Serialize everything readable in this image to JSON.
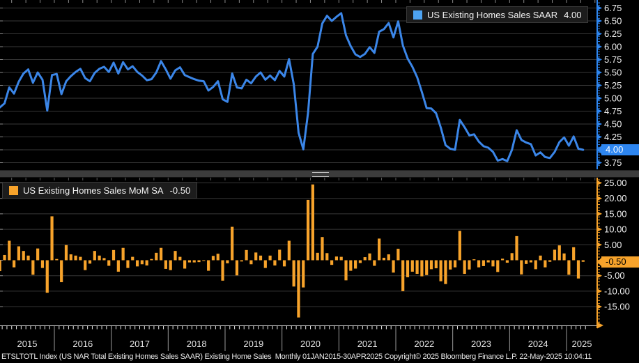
{
  "top_panel": {
    "legend": {
      "label": "US Existing Homes Sales SAAR",
      "value": "4.00",
      "swatch_color": "#4da3f2"
    },
    "last_value_marker": "4.00",
    "axis": {
      "color": "#2e86f0",
      "labels": [
        "6.75",
        "6.50",
        "6.25",
        "6.00",
        "5.75",
        "5.50",
        "5.25",
        "5.00",
        "4.75",
        "4.50",
        "4.25",
        "4.00",
        "3.75"
      ]
    }
  },
  "bottom_panel": {
    "legend": {
      "label": "US Existing Homes Sales MoM SA",
      "value": "-0.50",
      "swatch_color": "#f7a32b"
    },
    "last_value_marker": "-0.50",
    "axis": {
      "color": "#f7a32b",
      "labels": [
        "25.00",
        "20.00",
        "15.00",
        "10.00",
        "5.00",
        "-5.00",
        "-10.00",
        "-15.00"
      ]
    }
  },
  "x_axis": {
    "years": [
      "2015",
      "2016",
      "2017",
      "2018",
      "2019",
      "2020",
      "2021",
      "2022",
      "2023",
      "2024",
      "2025"
    ]
  },
  "status_bar": {
    "text": "ETSLTOTL Index (US NAR Total Existing Homes Sales SAAR) Existing Home Sales  Monthly 01JAN2015-30APR2025 Copyright© 2025 Bloomberg Finance L.P. 22-May-2025 10:04:11"
  },
  "colors": {
    "line_blue": "#3b86e8",
    "axis_blue": "#2e86f0",
    "bar_orange": "#f7a32b",
    "gridline": "#373737",
    "tick_gray": "#e8e8e8",
    "separator_gray": "#9a9a9a",
    "label_white": "#f2f2f2"
  },
  "chart_data": [
    {
      "type": "line",
      "title": "US Existing Homes Sales SAAR",
      "x_start": "Jan 2015",
      "x_end": "Apr 2025",
      "frequency": "monthly",
      "last_value": 4.0,
      "ylim": [
        3.66,
        6.9
      ],
      "ytick_step": 0.25,
      "grid": true,
      "legend_position": "top-right",
      "values": [
        4.82,
        4.9,
        5.21,
        5.09,
        5.32,
        5.48,
        5.56,
        5.3,
        5.5,
        5.36,
        4.76,
        5.45,
        5.47,
        5.08,
        5.33,
        5.43,
        5.51,
        5.57,
        5.39,
        5.33,
        5.49,
        5.57,
        5.61,
        5.51,
        5.69,
        5.48,
        5.7,
        5.56,
        5.62,
        5.51,
        5.44,
        5.35,
        5.37,
        5.5,
        5.72,
        5.56,
        5.38,
        5.54,
        5.6,
        5.45,
        5.41,
        5.37,
        5.34,
        5.33,
        5.15,
        5.22,
        5.33,
        4.98,
        4.93,
        5.48,
        5.21,
        5.19,
        5.36,
        5.29,
        5.42,
        5.5,
        5.36,
        5.44,
        5.35,
        5.53,
        5.42,
        5.76,
        5.27,
        4.33,
        4.01,
        4.72,
        5.86,
        6.0,
        6.45,
        6.6,
        6.5,
        6.58,
        6.65,
        6.22,
        6.01,
        5.85,
        5.8,
        5.86,
        5.99,
        5.88,
        6.29,
        6.34,
        6.46,
        6.18,
        6.49,
        6.02,
        5.77,
        5.61,
        5.41,
        5.12,
        4.81,
        4.8,
        4.71,
        4.43,
        4.09,
        4.02,
        4.0,
        4.58,
        4.44,
        4.28,
        4.3,
        4.16,
        4.07,
        4.04,
        3.96,
        3.79,
        3.82,
        3.78,
        4.0,
        4.38,
        4.19,
        4.14,
        4.11,
        3.89,
        3.95,
        3.86,
        3.84,
        3.96,
        4.15,
        4.24,
        4.08,
        4.26,
        4.02,
        4.0
      ]
    },
    {
      "type": "bar",
      "title": "US Existing Homes Sales MoM SA",
      "x_start": "Jan 2015",
      "x_end": "Apr 2025",
      "frequency": "monthly",
      "last_value": -0.5,
      "ylim": [
        -21.0,
        26.5
      ],
      "ytick_step": 5,
      "grid": true,
      "legend_position": "top-left",
      "values": [
        -3.5,
        1.7,
        6.3,
        -2.3,
        4.5,
        3.0,
        1.5,
        -4.7,
        3.8,
        -2.5,
        -10.5,
        14.2,
        0.4,
        -7.1,
        4.9,
        1.9,
        1.5,
        1.1,
        -3.2,
        -1.1,
        3.0,
        1.5,
        0.7,
        -1.8,
        3.3,
        -3.7,
        4.0,
        -2.5,
        1.1,
        -2.0,
        -1.3,
        -1.7,
        0.4,
        2.4,
        4.0,
        -2.8,
        -3.2,
        3.0,
        1.1,
        -2.7,
        -0.7,
        -0.7,
        -0.6,
        -0.2,
        -3.4,
        1.4,
        2.1,
        -6.6,
        -1.0,
        10.8,
        -4.9,
        -0.4,
        3.3,
        -1.3,
        2.5,
        1.5,
        -2.5,
        1.5,
        -1.7,
        3.4,
        -2.0,
        6.3,
        -8.5,
        -18.5,
        -8.8,
        19.5,
        24.5,
        2.4,
        7.5,
        2.3,
        -1.5,
        1.2,
        1.1,
        -6.5,
        -3.4,
        -2.7,
        -0.9,
        1.0,
        2.2,
        -1.8,
        7.0,
        0.8,
        1.9,
        -4.0,
        3.7,
        -10.0,
        -5.5,
        -3.7,
        -4.4,
        -5.2,
        -4.8,
        -2.9,
        -2.6,
        -6.8,
        -7.7,
        -3.0,
        -2.3,
        9.5,
        -4.4,
        -3.0,
        0.3,
        -2.3,
        -1.9,
        -0.7,
        -2.0,
        -3.8,
        0.5,
        -0.8,
        2.3,
        7.8,
        -4.6,
        -1.2,
        -0.7,
        -2.9,
        1.5,
        -2.3,
        -0.5,
        3.4,
        4.8,
        2.2,
        -4.7,
        4.2,
        -5.9,
        -0.5
      ]
    }
  ]
}
